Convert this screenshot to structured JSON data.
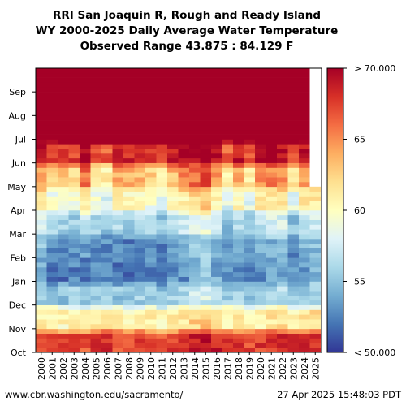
{
  "header": {
    "title_line1": "RRI San Joaquin R, Rough and Ready Island",
    "title_line2": "WY 2000-2025 Daily Average Water Temperature",
    "title_line3": "Observed Range 43.875 : 84.129 F"
  },
  "footer": {
    "source_url": "www.cbr.washington.edu/sacramento/",
    "timestamp": "27 Apr 2025 15:48:03 PDT"
  },
  "chart_data": {
    "type": "heatmap",
    "x_categories": [
      "2000",
      "2001",
      "2002",
      "2003",
      "2004",
      "2005",
      "2006",
      "2007",
      "2008",
      "2009",
      "2010",
      "2011",
      "2012",
      "2013",
      "2014",
      "2015",
      "2016",
      "2017",
      "2018",
      "2019",
      "2020",
      "2021",
      "2022",
      "2023",
      "2024",
      "2025"
    ],
    "y_categories": [
      "Oct",
      "Nov",
      "Dec",
      "Jan",
      "Feb",
      "Mar",
      "Apr",
      "May",
      "Jun",
      "Jul",
      "Aug",
      "Sep"
    ],
    "value_unit": "F",
    "observed_min": 43.875,
    "observed_max": 84.129,
    "colorbar": {
      "ticks": [
        "< 50.000",
        "55",
        "60",
        "65",
        "> 70.000"
      ],
      "range": [
        50,
        70
      ]
    },
    "monthly_mean_by_year": [
      [
        68,
        61,
        56,
        54,
        55,
        57.5,
        61,
        64.5,
        69,
        74,
        75,
        73
      ],
      [
        67,
        61,
        55,
        52,
        53,
        55.5,
        59,
        62.5,
        67.5,
        74,
        75,
        73
      ],
      [
        67,
        60.5,
        55,
        52,
        53,
        55.5,
        59,
        63,
        68,
        74,
        75,
        73
      ],
      [
        67.5,
        61,
        55.5,
        52.5,
        53,
        55.5,
        59,
        62.5,
        67.5,
        74,
        75,
        73
      ],
      [
        67,
        60.5,
        55,
        52,
        53.5,
        57,
        61.5,
        66,
        70,
        74,
        75,
        73
      ],
      [
        67.5,
        61,
        55.5,
        53,
        53,
        55.5,
        59,
        62,
        67,
        74,
        75,
        73
      ],
      [
        68,
        61.5,
        56,
        53,
        53,
        55,
        58,
        61,
        66.5,
        74,
        75,
        73
      ],
      [
        67,
        60.5,
        55,
        52,
        53,
        56,
        60.5,
        64,
        69,
        74,
        75,
        73
      ],
      [
        67,
        60.5,
        55,
        52,
        52.5,
        55.5,
        60,
        63.5,
        68.5,
        74,
        75,
        73
      ],
      [
        67.5,
        61,
        55.5,
        52.5,
        53,
        56,
        60,
        63.5,
        68.5,
        74,
        75,
        73
      ],
      [
        67.5,
        61,
        55.5,
        52.5,
        53,
        55.5,
        59,
        62.5,
        67.5,
        74,
        75,
        73
      ],
      [
        66.5,
        60,
        54.5,
        52,
        52.5,
        55,
        58.5,
        61.5,
        66.5,
        74,
        75,
        73
      ],
      [
        67.5,
        61,
        55.5,
        53,
        53.5,
        56,
        60,
        63.5,
        68.5,
        74,
        75,
        73
      ],
      [
        68,
        61.5,
        56,
        53,
        54,
        57,
        61,
        65,
        69.5,
        74,
        75,
        73
      ],
      [
        69,
        62.5,
        57,
        54.5,
        55,
        58,
        62,
        66,
        70,
        74,
        75,
        73
      ],
      [
        69.5,
        63,
        57.5,
        55,
        56,
        59,
        63,
        67,
        70.5,
        74,
        75,
        73
      ],
      [
        68.5,
        62,
        56.5,
        54,
        54.5,
        57,
        60.5,
        64.5,
        69,
        74,
        75,
        73
      ],
      [
        67.5,
        61,
        55.5,
        53,
        53,
        55,
        58,
        61,
        66,
        74,
        75,
        73
      ],
      [
        67.5,
        61,
        55.5,
        53,
        54,
        56.5,
        60.5,
        64,
        69,
        74,
        75,
        73
      ],
      [
        67,
        60.5,
        55,
        52.5,
        53,
        55,
        58,
        61.5,
        66.5,
        74,
        75,
        73
      ],
      [
        67.5,
        61,
        55.5,
        53,
        54,
        57,
        61,
        65,
        69.5,
        74,
        75,
        73
      ],
      [
        68,
        61.5,
        56,
        53.5,
        54.5,
        57.5,
        61.5,
        65.5,
        70,
        74,
        75,
        73
      ],
      [
        68.5,
        62,
        56.5,
        54,
        54.5,
        57.5,
        61.5,
        65,
        69.5,
        74,
        75,
        73
      ],
      [
        67.5,
        61,
        55.5,
        53,
        53,
        55,
        58.5,
        61.5,
        66.5,
        74,
        75,
        73
      ],
      [
        68,
        61.5,
        56,
        53.5,
        54.5,
        57,
        61,
        64.5,
        69,
        74,
        75,
        73
      ],
      [
        68.5,
        62,
        56.5,
        54,
        55,
        57.5,
        61.5,
        null,
        null,
        null,
        null,
        null
      ]
    ],
    "color_scale": [
      "#313695",
      "#4575b4",
      "#74add1",
      "#abd9e9",
      "#e0f3f8",
      "#ffffbf",
      "#fee090",
      "#fdae61",
      "#f46d43",
      "#d73027",
      "#a50026"
    ],
    "colors": {
      "low": "#4575b4",
      "mid": "#ffffbf",
      "high": "#d73027",
      "frame": "#000000"
    }
  }
}
